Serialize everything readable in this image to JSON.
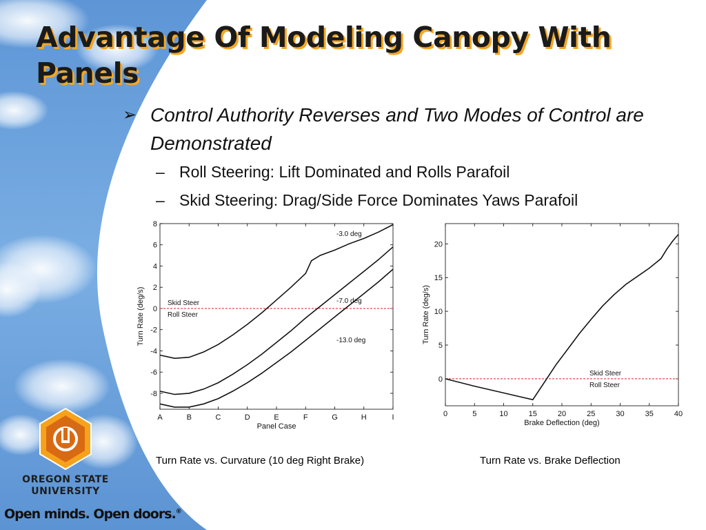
{
  "slide": {
    "title": "Advantage Of Modeling Canopy With Panels",
    "bullet": "Control Authority Reverses and Two Modes of Control are Demonstrated",
    "bullet_marker": "➢",
    "sub_marker": "–",
    "sub_bullets": [
      "Roll Steering: Lift Dominated and Rolls Parafoil",
      "Skid Steering: Drag/Side Force Dominates Yaws Parafoil"
    ]
  },
  "captions": {
    "left": "Turn Rate vs. Curvature (10 deg Right Brake)",
    "right": "Turn Rate vs. Brake Deflection"
  },
  "branding": {
    "university_line1": "OREGON STATE",
    "university_line2": "UNIVERSITY",
    "tagline": "Open minds. Open doors.",
    "tagline_mark": "®",
    "logo_colors": [
      "#f7a21b",
      "#d96a14"
    ]
  },
  "chart_data": [
    {
      "type": "line",
      "xlabel": "Panel Case",
      "ylabel": "Turn Rate (deg/s)",
      "categories": [
        "A",
        "B",
        "C",
        "D",
        "E",
        "F",
        "G",
        "H",
        "I"
      ],
      "ylim": [
        -9.5,
        8
      ],
      "yticks": [
        8,
        6,
        4,
        2,
        0,
        -2,
        -4,
        -6,
        -8
      ],
      "grid": false,
      "reference_line": {
        "y": 0,
        "color": "#d42020",
        "style": "dashed",
        "label_above": "Skid Steer",
        "label_below": "Roll Steer"
      },
      "series": [
        {
          "name": "-3.0 deg",
          "x": [
            0,
            0.5,
            1,
            1.5,
            2,
            2.5,
            3,
            3.5,
            4,
            4.5,
            5,
            5.2,
            5.5,
            6,
            6.5,
            7,
            7.5,
            8
          ],
          "values": [
            -4.4,
            -4.7,
            -4.6,
            -4.1,
            -3.4,
            -2.5,
            -1.5,
            -0.4,
            0.8,
            2.0,
            3.3,
            4.5,
            5.0,
            5.5,
            6.1,
            6.6,
            7.2,
            7.9
          ]
        },
        {
          "name": "-7.0 deg",
          "x": [
            0,
            0.5,
            1,
            1.5,
            2,
            2.5,
            3,
            3.5,
            4,
            4.5,
            5,
            5.5,
            6,
            6.5,
            7,
            7.5,
            8
          ],
          "values": [
            -7.8,
            -8.1,
            -8.0,
            -7.6,
            -7.0,
            -6.2,
            -5.3,
            -4.3,
            -3.2,
            -2.1,
            -0.9,
            0.2,
            1.3,
            2.4,
            3.5,
            4.6,
            5.8
          ]
        },
        {
          "name": "-13.0 deg",
          "x": [
            0,
            0.5,
            1,
            1.5,
            2,
            2.5,
            3,
            3.5,
            4,
            4.5,
            5,
            5.5,
            6,
            6.5,
            7,
            7.5,
            8
          ],
          "values": [
            -9.0,
            -9.3,
            -9.3,
            -9.0,
            -8.5,
            -7.8,
            -7.0,
            -6.1,
            -5.1,
            -4.1,
            -3.0,
            -1.9,
            -0.8,
            0.3,
            1.4,
            2.5,
            3.7
          ]
        }
      ]
    },
    {
      "type": "line",
      "xlabel": "Brake Deflection (deg)",
      "ylabel": "Turn Rate (deg/s)",
      "xticks": [
        0,
        5,
        10,
        15,
        20,
        25,
        30,
        35,
        40
      ],
      "yticks": [
        20,
        15,
        10,
        5,
        0
      ],
      "xlim": [
        0,
        40
      ],
      "ylim": [
        -4,
        23
      ],
      "grid": false,
      "reference_line": {
        "y": 0,
        "color": "#d42020",
        "style": "dashed",
        "label_above": "Skid Steer",
        "label_below": "Roll Steer"
      },
      "series": [
        {
          "x": [
            0,
            5,
            10,
            15,
            17,
            19,
            21,
            23,
            25,
            27,
            29,
            31,
            33,
            35,
            37,
            38,
            39,
            40
          ],
          "values": [
            0,
            -1.1,
            -2.1,
            -3.1,
            -0.5,
            2.1,
            4.4,
            6.7,
            8.8,
            10.8,
            12.5,
            14.0,
            15.2,
            16.4,
            17.8,
            19.2,
            20.4,
            21.4
          ]
        }
      ]
    }
  ]
}
